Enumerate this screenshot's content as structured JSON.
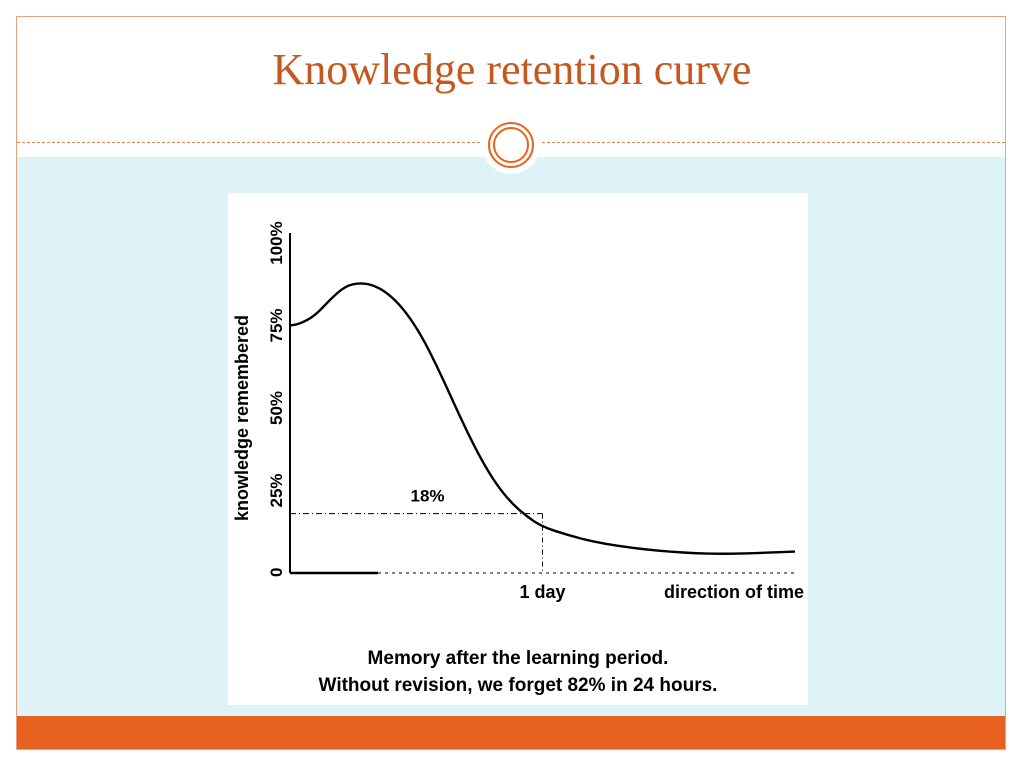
{
  "slide": {
    "title": "Knowledge retention curve",
    "accent_color": "#e8621f",
    "title_color": "#c4581f",
    "content_background": "#ddf3f8"
  },
  "chart_data": {
    "type": "line",
    "title": "",
    "ylabel": "knowledge remembered",
    "y_ticks": [
      "0",
      "25%",
      "50%",
      "75%",
      "100%"
    ],
    "ylim": [
      0,
      100
    ],
    "x_ticks": [
      "1 day"
    ],
    "x_end_label": "direction of time",
    "series": [
      {
        "x": [
          0,
          0.02,
          0.05,
          0.08,
          0.11,
          0.14,
          0.17,
          0.2,
          0.23,
          0.26,
          0.29,
          0.32,
          0.35,
          0.38,
          0.41,
          0.44,
          0.47,
          0.5,
          0.55,
          0.6,
          0.65,
          0.7,
          0.75,
          0.8,
          0.85,
          0.9,
          0.95,
          1.0
        ],
        "values": [
          75,
          75.5,
          78,
          83,
          87,
          88,
          87,
          84,
          79,
          72,
          63,
          53,
          43,
          34,
          26.5,
          21,
          17,
          14,
          11.5,
          9.5,
          8.2,
          7.2,
          6.5,
          6,
          5.8,
          5.9,
          6.2,
          6.5
        ]
      }
    ],
    "annotations": [
      {
        "text": "18%",
        "x": 0.5,
        "y": 18
      }
    ],
    "caption": [
      "Memory after the learning period.",
      "Without revision, we forget 82% in 24 hours."
    ],
    "grid": false
  }
}
